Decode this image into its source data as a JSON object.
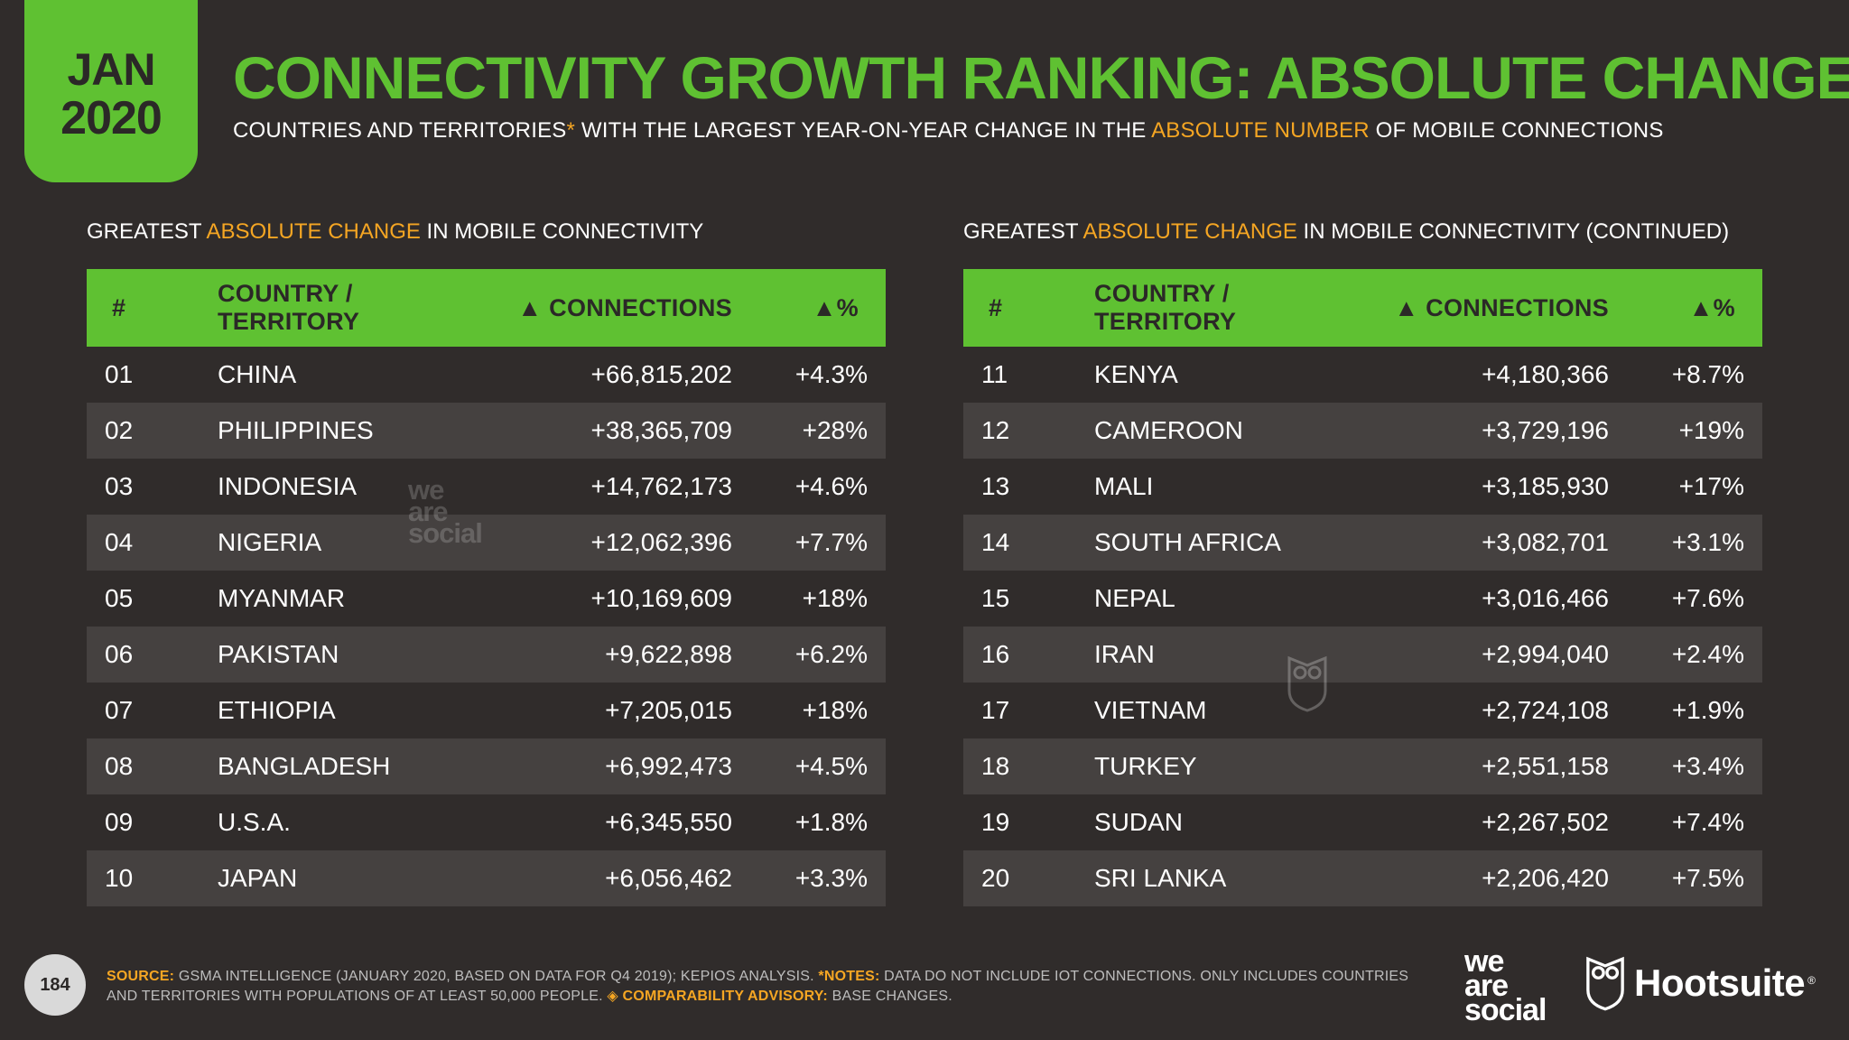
{
  "badge": {
    "month": "JAN",
    "year": "2020"
  },
  "title": "CONNECTIVITY GROWTH RANKING: ABSOLUTE CHANGE",
  "subtitle": {
    "part1": "COUNTRIES AND TERRITORIES",
    "asterisk": "*",
    "part2": " WITH THE LARGEST YEAR-ON-YEAR CHANGE IN THE ",
    "highlight": "ABSOLUTE NUMBER",
    "part3": " OF MOBILE CONNECTIONS"
  },
  "left_section": {
    "pre": "GREATEST ",
    "highlight": "ABSOLUTE CHANGE",
    "post": " IN MOBILE CONNECTIVITY"
  },
  "right_section": {
    "pre": "GREATEST ",
    "highlight": "ABSOLUTE CHANGE",
    "post": " IN MOBILE CONNECTIVITY (CONTINUED)"
  },
  "headers": {
    "num": "#",
    "country": "COUNTRY / TERRITORY",
    "connections": "▲ CONNECTIONS",
    "pct": "▲%"
  },
  "left_rows": [
    {
      "num": "01",
      "country": "CHINA",
      "connections": "+66,815,202",
      "pct": "+4.3%"
    },
    {
      "num": "02",
      "country": "PHILIPPINES",
      "connections": "+38,365,709",
      "pct": "+28%"
    },
    {
      "num": "03",
      "country": "INDONESIA",
      "connections": "+14,762,173",
      "pct": "+4.6%"
    },
    {
      "num": "04",
      "country": "NIGERIA",
      "connections": "+12,062,396",
      "pct": "+7.7%"
    },
    {
      "num": "05",
      "country": "MYANMAR",
      "connections": "+10,169,609",
      "pct": "+18%"
    },
    {
      "num": "06",
      "country": "PAKISTAN",
      "connections": "+9,622,898",
      "pct": "+6.2%"
    },
    {
      "num": "07",
      "country": "ETHIOPIA",
      "connections": "+7,205,015",
      "pct": "+18%"
    },
    {
      "num": "08",
      "country": "BANGLADESH",
      "connections": "+6,992,473",
      "pct": "+4.5%"
    },
    {
      "num": "09",
      "country": "U.S.A.",
      "connections": "+6,345,550",
      "pct": "+1.8%"
    },
    {
      "num": "10",
      "country": "JAPAN",
      "connections": "+6,056,462",
      "pct": "+3.3%"
    }
  ],
  "right_rows": [
    {
      "num": "11",
      "country": "KENYA",
      "connections": "+4,180,366",
      "pct": "+8.7%"
    },
    {
      "num": "12",
      "country": "CAMEROON",
      "connections": "+3,729,196",
      "pct": "+19%"
    },
    {
      "num": "13",
      "country": "MALI",
      "connections": "+3,185,930",
      "pct": "+17%"
    },
    {
      "num": "14",
      "country": "SOUTH AFRICA",
      "connections": "+3,082,701",
      "pct": "+3.1%"
    },
    {
      "num": "15",
      "country": "NEPAL",
      "connections": "+3,016,466",
      "pct": "+7.6%"
    },
    {
      "num": "16",
      "country": "IRAN",
      "connections": "+2,994,040",
      "pct": "+2.4%"
    },
    {
      "num": "17",
      "country": "VIETNAM",
      "connections": "+2,724,108",
      "pct": "+1.9%"
    },
    {
      "num": "18",
      "country": "TURKEY",
      "connections": "+2,551,158",
      "pct": "+3.4%"
    },
    {
      "num": "19",
      "country": "SUDAN",
      "connections": "+2,267,502",
      "pct": "+7.4%"
    },
    {
      "num": "20",
      "country": "SRI LANKA",
      "connections": "+2,206,420",
      "pct": "+7.5%"
    }
  ],
  "watermark": {
    "line1": "we",
    "line2": "are",
    "line3": "social"
  },
  "footer": {
    "page": "184",
    "source_label": "SOURCE:",
    "source_text": " GSMA INTELLIGENCE (JANUARY 2020, BASED ON DATA FOR Q4 2019); KEPIOS ANALYSIS. ",
    "notes_label": "*NOTES:",
    "notes_text": " DATA DO NOT INCLUDE IOT CONNECTIONS. ONLY INCLUDES COUNTRIES AND TERRITORIES WITH POPULATIONS OF AT LEAST 50,000 PEOPLE. ",
    "advisory_label": "◈ COMPARABILITY ADVISORY:",
    "advisory_text": " BASE CHANGES."
  },
  "logos": {
    "was_line1": "we",
    "was_line2": "are",
    "was_line3": "social",
    "hootsuite": "Hootsuite",
    "hootsuite_reg": "®"
  },
  "colors": {
    "background": "#302c2b",
    "green": "#5fc132",
    "orange": "#f5a623",
    "row_shade": "#454140"
  }
}
